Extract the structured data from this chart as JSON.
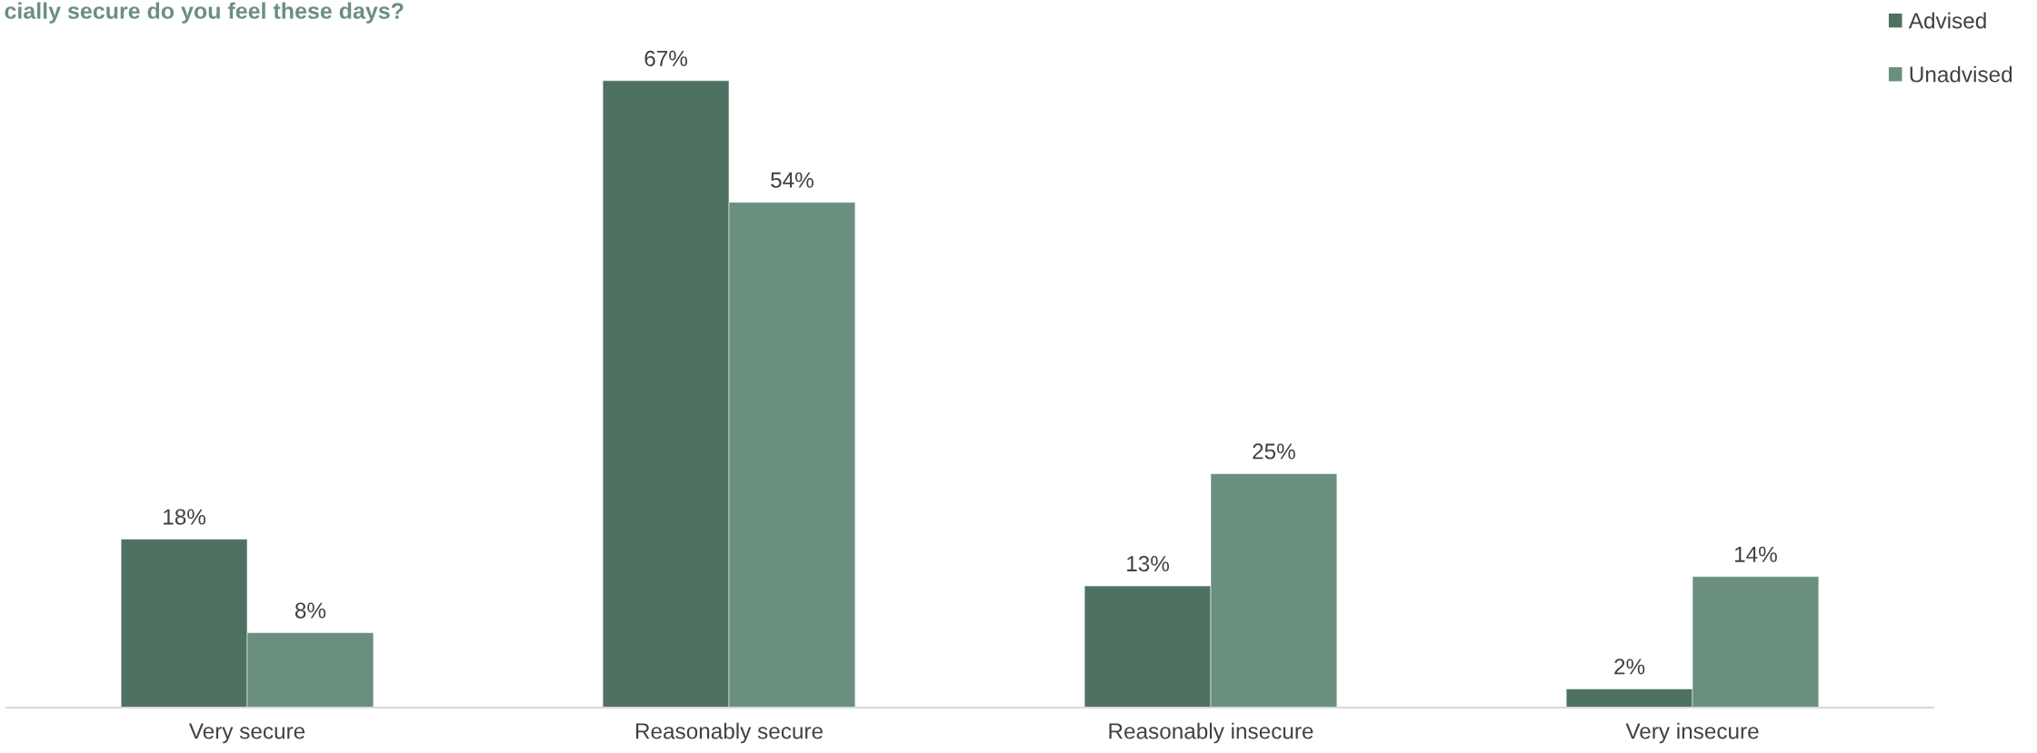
{
  "chart_data": {
    "type": "bar",
    "title": "cially secure do you feel these days?",
    "categories": [
      "Very secure",
      "Reasonably secure",
      "Reasonably insecure",
      "Very insecure"
    ],
    "series": [
      {
        "name": "Advised",
        "color": "#4f7162",
        "values": [
          18,
          67,
          13,
          2
        ],
        "value_labels": [
          "18%",
          "67%",
          "13%",
          "2%"
        ]
      },
      {
        "name": "Unadvised",
        "color": "#6a8f7e",
        "values": [
          8,
          54,
          25,
          14
        ],
        "value_labels": [
          "8%",
          "54%",
          "25%",
          "14%"
        ]
      }
    ],
    "tick_labels": "x",
    "legend": "top right",
    "grid": false
  }
}
